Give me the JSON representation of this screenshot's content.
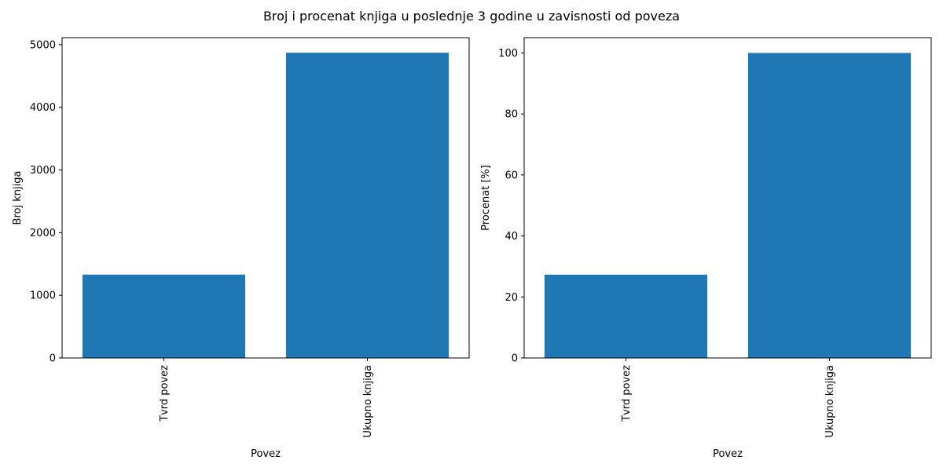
{
  "figure": {
    "title": "Broj i procenat knjiga u poslednje 3 godine u zavisnosti od poveza"
  },
  "colors": {
    "bar": "#1f77b4",
    "axis": "#000000",
    "background": "#ffffff"
  },
  "chart_data": [
    {
      "type": "bar",
      "title": "",
      "categories": [
        "Tvrd povez",
        "Ukupno knjiga"
      ],
      "values": [
        1330,
        4870
      ],
      "xlabel": "Povez",
      "ylabel": "Broj knjiga",
      "ylim": [
        0,
        5110
      ],
      "yticks": [
        0,
        1000,
        2000,
        3000,
        4000,
        5000
      ],
      "grid": false,
      "legend": "none",
      "xtick_rotation": 90
    },
    {
      "type": "bar",
      "title": "",
      "categories": [
        "Tvrd povez",
        "Ukupno knjiga"
      ],
      "values": [
        27.3,
        100
      ],
      "xlabel": "Povez",
      "ylabel": "Procenat [%]",
      "ylim": [
        0,
        105
      ],
      "yticks": [
        0,
        20,
        40,
        60,
        80,
        100
      ],
      "grid": false,
      "legend": "none",
      "xtick_rotation": 90
    }
  ]
}
